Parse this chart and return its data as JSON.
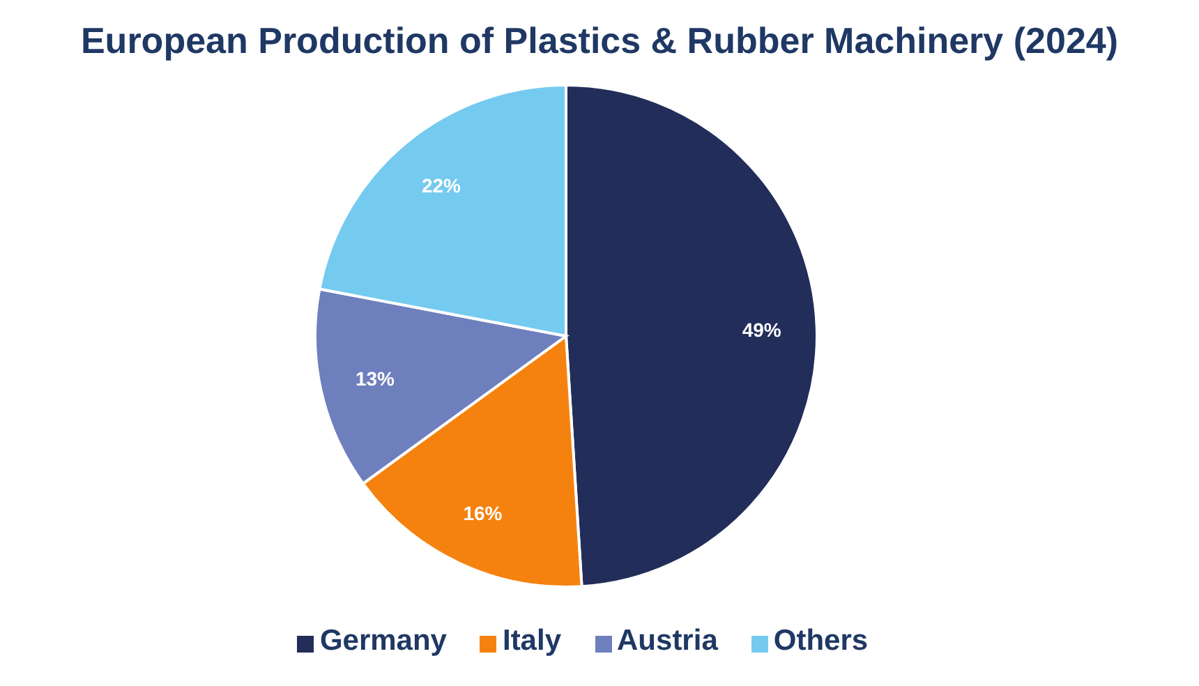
{
  "chart_data": {
    "type": "pie",
    "title": "European Production of Plastics & Rubber Machinery (2024)",
    "categories": [
      "Germany",
      "Italy",
      "Austria",
      "Others"
    ],
    "values": [
      49,
      16,
      13,
      22
    ],
    "colors": [
      "#222d5a",
      "#f5820f",
      "#6e7fbd",
      "#75caf0"
    ],
    "value_labels": [
      "49%",
      "16%",
      "13%",
      "22%"
    ],
    "legend": "bottom"
  }
}
